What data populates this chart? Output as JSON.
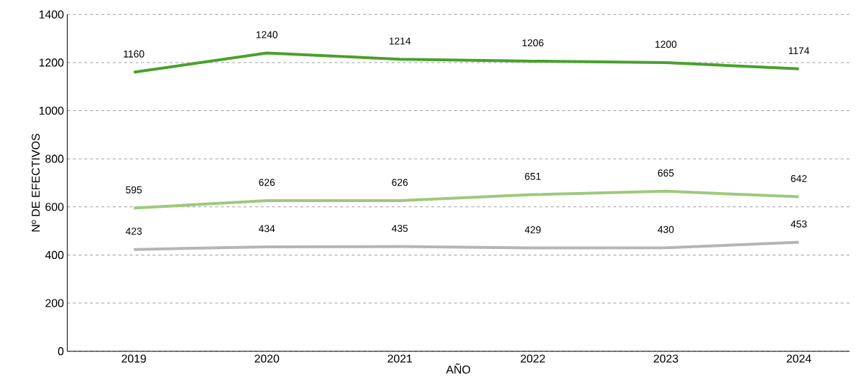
{
  "chart_data": {
    "type": "line",
    "xlabel": "AÑO",
    "ylabel": "Nº DE EFECTIVOS",
    "categories": [
      "2019",
      "2020",
      "2021",
      "2022",
      "2023",
      "2024"
    ],
    "series": [
      {
        "color": "#4aa02c",
        "values": [
          1160,
          1240,
          1214,
          1206,
          1200,
          1174
        ]
      },
      {
        "color": "#9dc97c",
        "values": [
          595,
          626,
          626,
          651,
          665,
          642
        ]
      },
      {
        "color": "#b5b5b5",
        "values": [
          423,
          434,
          435,
          429,
          430,
          453
        ]
      }
    ],
    "ylim": [
      0,
      1400
    ],
    "yticks": [
      0,
      200,
      400,
      600,
      800,
      1000,
      1200,
      1400
    ],
    "grid": "y",
    "data_labels": true,
    "marker": "none",
    "line_style": "solid"
  }
}
